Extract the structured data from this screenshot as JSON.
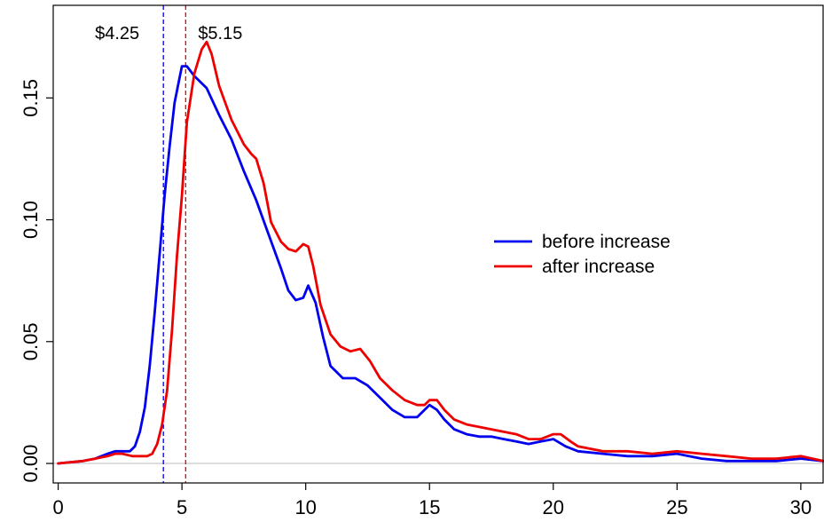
{
  "chart_data": {
    "type": "line",
    "title": "",
    "xlabel": "",
    "ylabel": "",
    "xlim": [
      -0.2,
      30.9
    ],
    "ylim": [
      -0.008,
      0.188
    ],
    "x_ticks": [
      0,
      5,
      10,
      15,
      20,
      25,
      30
    ],
    "x_tick_labels": [
      "0",
      "5",
      "10",
      "15",
      "20",
      "25",
      "30"
    ],
    "y_ticks": [
      0.0,
      0.05,
      0.1,
      0.15
    ],
    "y_tick_labels": [
      "0.00",
      "0.05",
      "0.10",
      "0.15"
    ],
    "grid": false,
    "legend_position": "right-middle",
    "series": [
      {
        "name": "before increase",
        "color": "#0000ee",
        "x": [
          0,
          1,
          1.5,
          2,
          2.3,
          2.6,
          2.9,
          3.1,
          3.3,
          3.5,
          3.7,
          3.9,
          4.1,
          4.3,
          4.5,
          4.7,
          4.9,
          5.0,
          5.2,
          5.5,
          6.0,
          6.5,
          7.0,
          7.5,
          8.0,
          8.5,
          9.0,
          9.3,
          9.6,
          9.9,
          10.1,
          10.4,
          10.7,
          11.0,
          11.5,
          12.0,
          12.5,
          13.0,
          13.5,
          14.0,
          14.5,
          14.8,
          15.0,
          15.3,
          15.6,
          16.0,
          16.5,
          17.0,
          17.5,
          18.0,
          18.5,
          19.0,
          19.5,
          20.0,
          20.5,
          21.0,
          22.0,
          23.0,
          24.0,
          25.0,
          26.0,
          27.0,
          28.0,
          29.0,
          30.0,
          30.9
        ],
        "y": [
          0.0,
          0.001,
          0.002,
          0.004,
          0.005,
          0.005,
          0.005,
          0.007,
          0.013,
          0.023,
          0.04,
          0.062,
          0.086,
          0.11,
          0.13,
          0.148,
          0.158,
          0.163,
          0.163,
          0.159,
          0.154,
          0.143,
          0.133,
          0.12,
          0.108,
          0.094,
          0.08,
          0.071,
          0.067,
          0.068,
          0.073,
          0.066,
          0.052,
          0.04,
          0.035,
          0.035,
          0.032,
          0.027,
          0.022,
          0.019,
          0.019,
          0.022,
          0.024,
          0.022,
          0.018,
          0.014,
          0.012,
          0.011,
          0.011,
          0.01,
          0.009,
          0.008,
          0.009,
          0.01,
          0.007,
          0.005,
          0.004,
          0.003,
          0.003,
          0.004,
          0.002,
          0.001,
          0.001,
          0.001,
          0.002,
          0.001
        ]
      },
      {
        "name": "after increase",
        "color": "#ee0000",
        "x": [
          0,
          1,
          1.5,
          2,
          2.3,
          2.6,
          3.0,
          3.3,
          3.6,
          3.8,
          4.0,
          4.2,
          4.4,
          4.6,
          4.8,
          5.0,
          5.2,
          5.5,
          5.8,
          6.0,
          6.2,
          6.5,
          7.0,
          7.5,
          7.8,
          8.0,
          8.3,
          8.6,
          9.0,
          9.3,
          9.6,
          9.9,
          10.1,
          10.3,
          10.6,
          11.0,
          11.4,
          11.8,
          12.2,
          12.6,
          13.0,
          13.5,
          14.0,
          14.5,
          14.8,
          15.0,
          15.3,
          15.6,
          16.0,
          16.5,
          17.0,
          17.5,
          18.0,
          18.5,
          19.0,
          19.5,
          20.0,
          20.3,
          20.7,
          21.0,
          22.0,
          23.0,
          24.0,
          25.0,
          26.0,
          27.0,
          28.0,
          29.0,
          30.0,
          30.9
        ],
        "y": [
          0.0,
          0.001,
          0.002,
          0.003,
          0.004,
          0.004,
          0.003,
          0.003,
          0.003,
          0.004,
          0.008,
          0.016,
          0.03,
          0.055,
          0.085,
          0.11,
          0.14,
          0.16,
          0.17,
          0.173,
          0.168,
          0.155,
          0.141,
          0.131,
          0.127,
          0.125,
          0.115,
          0.099,
          0.091,
          0.088,
          0.087,
          0.09,
          0.089,
          0.081,
          0.065,
          0.053,
          0.048,
          0.046,
          0.047,
          0.042,
          0.035,
          0.03,
          0.026,
          0.024,
          0.024,
          0.026,
          0.026,
          0.022,
          0.018,
          0.016,
          0.015,
          0.014,
          0.013,
          0.012,
          0.01,
          0.01,
          0.012,
          0.012,
          0.009,
          0.007,
          0.005,
          0.005,
          0.004,
          0.005,
          0.004,
          0.003,
          0.002,
          0.002,
          0.003,
          0.001
        ]
      }
    ],
    "reference_lines": [
      {
        "x": 4.25,
        "label": "$4.25",
        "color": "#0000ee",
        "style": "dashed"
      },
      {
        "x": 5.15,
        "label": "$5.15",
        "color": "#ee0000",
        "style": "dashed"
      }
    ],
    "baseline": {
      "y": 0,
      "color": "#bbbbbb"
    }
  }
}
